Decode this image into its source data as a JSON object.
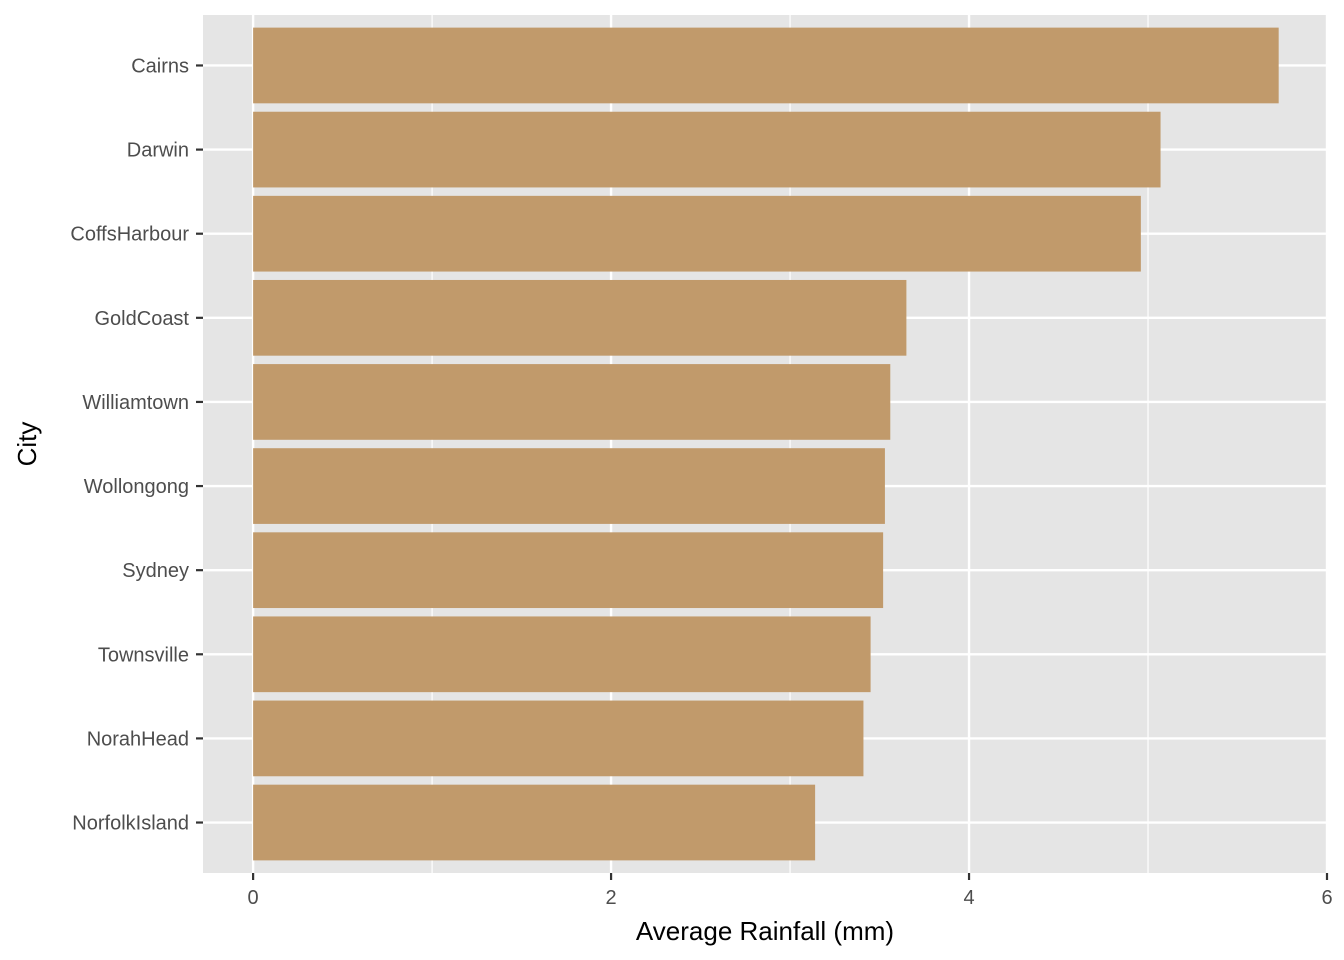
{
  "chart_data": {
    "type": "bar",
    "orientation": "horizontal",
    "title": "",
    "xlabel": "Average Rainfall (mm)",
    "ylabel": "City",
    "categories": [
      "Cairns",
      "Darwin",
      "CoffsHarbour",
      "GoldCoast",
      "Williamtown",
      "Wollongong",
      "Sydney",
      "Townsville",
      "NorahHead",
      "NorfolkIsland"
    ],
    "values": [
      5.73,
      5.07,
      4.96,
      3.65,
      3.56,
      3.53,
      3.52,
      3.45,
      3.41,
      3.14
    ],
    "xlim": [
      -0.28,
      6.0
    ],
    "xticks": [
      0,
      2,
      4,
      6
    ],
    "xtick_labels": [
      "0",
      "2",
      "4",
      "6"
    ],
    "grid": true,
    "colors": {
      "bar": "#c19a6b",
      "panel": "#e5e5e5",
      "grid": "#ffffff",
      "tick": "#333333"
    }
  }
}
